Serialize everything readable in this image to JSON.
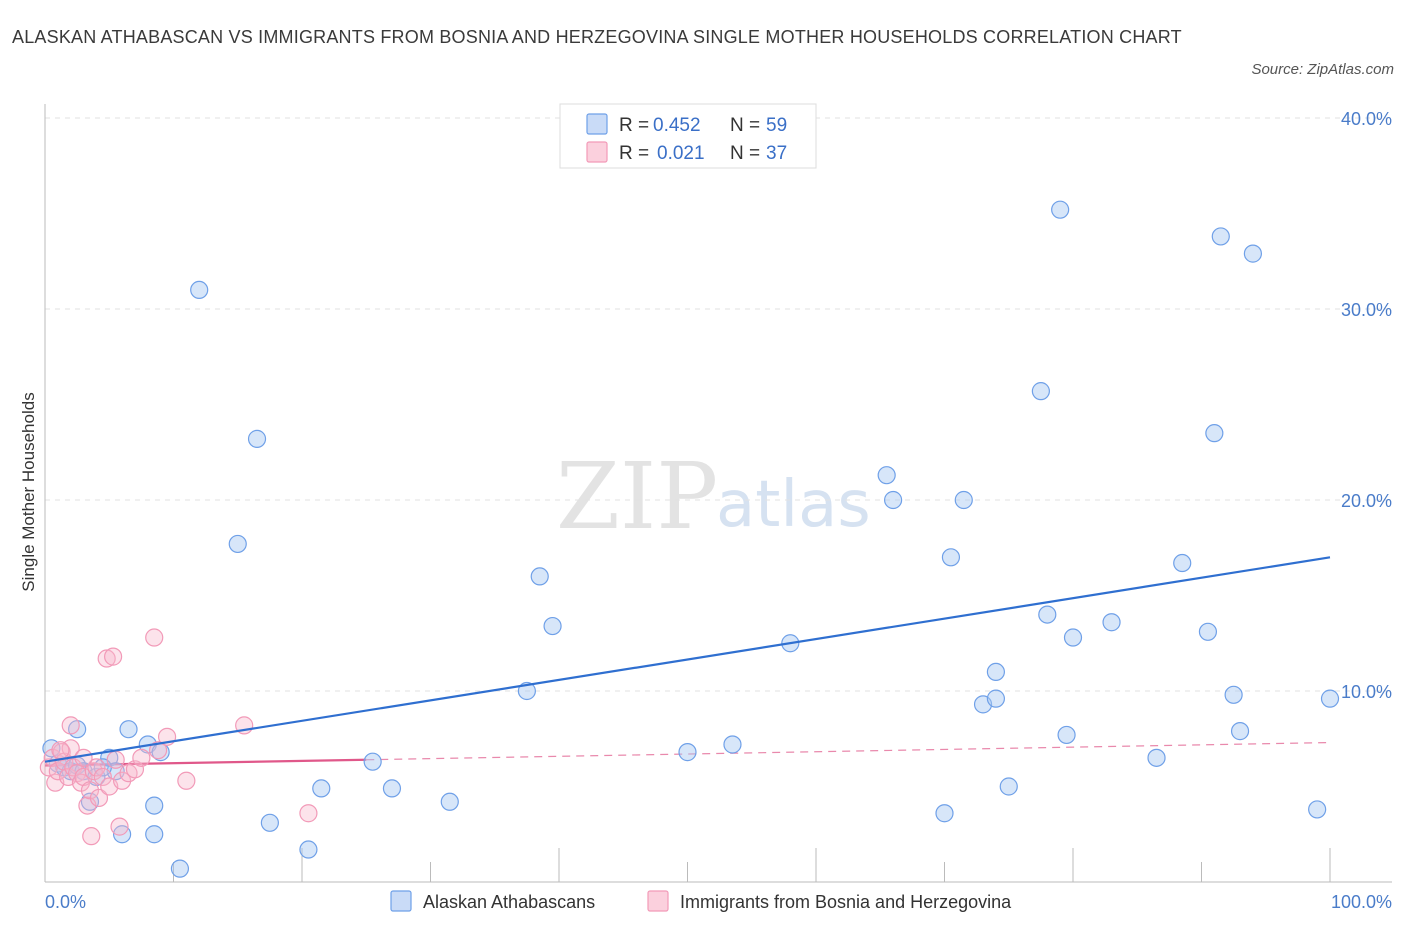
{
  "title": "ALASKAN ATHABASCAN VS IMMIGRANTS FROM BOSNIA AND HERZEGOVINA SINGLE MOTHER HOUSEHOLDS CORRELATION CHART",
  "source": "Source: ZipAtlas.com",
  "watermark": {
    "zip": "ZIP",
    "atlas": "atlas"
  },
  "legend": {
    "r_label": "R =",
    "n_label": "N =",
    "rows": [
      {
        "r": "0.452",
        "n": "59",
        "color": "#6fa0e8"
      },
      {
        "r": "0.021",
        "n": "37",
        "color": "#f29ab8"
      }
    ]
  },
  "bottom_legend": {
    "series1": "Alaskan Athabascans",
    "series2": "Immigrants from Bosnia and Herzegovina"
  },
  "chart_data": {
    "type": "scatter",
    "title": "ALASKAN ATHABASCAN VS IMMIGRANTS FROM BOSNIA AND HERZEGOVINA SINGLE MOTHER HOUSEHOLDS CORRELATION CHART",
    "xlabel": "",
    "ylabel": "Single Mother Households",
    "xlim": [
      0,
      100
    ],
    "ylim": [
      0,
      40
    ],
    "x_tick_labels": [
      "0.0%",
      "100.0%"
    ],
    "y_ticks": [
      10,
      20,
      30,
      40
    ],
    "y_tick_labels": [
      "10.0%",
      "20.0%",
      "30.0%",
      "40.0%"
    ],
    "grid": true,
    "legend_position": "top-center",
    "colors": {
      "series1": "#6fa0e8",
      "series1_line": "#2f6fd0",
      "series2": "#f29ab8",
      "series2_line": "#e0588a"
    },
    "series": [
      {
        "name": "Alaskan Athabascans",
        "R": 0.452,
        "N": 59,
        "trend": {
          "x": [
            0,
            100
          ],
          "y": [
            6.3,
            17.0
          ],
          "dashed_from": null
        },
        "points": [
          [
            0.5,
            7.0
          ],
          [
            1.0,
            6.2
          ],
          [
            1.5,
            6.0
          ],
          [
            2.0,
            5.8
          ],
          [
            2.5,
            6.1
          ],
          [
            3.0,
            5.8
          ],
          [
            4.0,
            5.5
          ],
          [
            3.5,
            4.2
          ],
          [
            2.5,
            8.0
          ],
          [
            5.0,
            6.5
          ],
          [
            5.5,
            5.8
          ],
          [
            6.5,
            8.0
          ],
          [
            8.0,
            7.2
          ],
          [
            9.0,
            6.8
          ],
          [
            6.0,
            2.5
          ],
          [
            8.5,
            4.0
          ],
          [
            8.5,
            2.5
          ],
          [
            10.5,
            0.7
          ],
          [
            12.0,
            31.0
          ],
          [
            15.0,
            17.7
          ],
          [
            16.5,
            23.2
          ],
          [
            17.5,
            3.1
          ],
          [
            20.5,
            1.7
          ],
          [
            21.5,
            4.9
          ],
          [
            25.5,
            6.3
          ],
          [
            27.0,
            4.9
          ],
          [
            31.5,
            4.2
          ],
          [
            37.5,
            10.0
          ],
          [
            38.5,
            16.0
          ],
          [
            39.5,
            13.4
          ],
          [
            50.0,
            6.8
          ],
          [
            53.5,
            7.2
          ],
          [
            58.0,
            12.5
          ],
          [
            65.5,
            21.3
          ],
          [
            66.0,
            20.0
          ],
          [
            70.0,
            3.6
          ],
          [
            70.5,
            17.0
          ],
          [
            71.5,
            20.0
          ],
          [
            73.0,
            9.3
          ],
          [
            74.0,
            11.0
          ],
          [
            74.0,
            9.6
          ],
          [
            75.0,
            5.0
          ],
          [
            77.5,
            25.7
          ],
          [
            78.0,
            14.0
          ],
          [
            79.0,
            35.2
          ],
          [
            79.5,
            7.7
          ],
          [
            80.0,
            12.8
          ],
          [
            83.0,
            13.6
          ],
          [
            86.5,
            6.5
          ],
          [
            88.5,
            16.7
          ],
          [
            90.5,
            13.1
          ],
          [
            91.0,
            23.5
          ],
          [
            91.5,
            33.8
          ],
          [
            92.5,
            9.8
          ],
          [
            93.0,
            7.9
          ],
          [
            94.0,
            32.9
          ],
          [
            99.0,
            3.8
          ],
          [
            100.0,
            9.6
          ],
          [
            4.5,
            6.0
          ]
        ]
      },
      {
        "name": "Immigrants from Bosnia and Herzegovina",
        "R": 0.021,
        "N": 37,
        "trend": {
          "x": [
            0,
            100
          ],
          "y": [
            6.1,
            7.3
          ],
          "dashed_from": 25
        },
        "points": [
          [
            0.3,
            6.0
          ],
          [
            0.6,
            6.5
          ],
          [
            0.8,
            5.2
          ],
          [
            1.0,
            5.8
          ],
          [
            1.3,
            6.8
          ],
          [
            1.5,
            6.3
          ],
          [
            1.8,
            5.5
          ],
          [
            2.0,
            7.0
          ],
          [
            2.2,
            6.0
          ],
          [
            2.5,
            5.7
          ],
          [
            2.8,
            5.2
          ],
          [
            3.0,
            5.5
          ],
          [
            3.3,
            4.0
          ],
          [
            3.5,
            4.8
          ],
          [
            3.6,
            2.4
          ],
          [
            3.8,
            5.8
          ],
          [
            4.0,
            6.0
          ],
          [
            4.2,
            4.4
          ],
          [
            4.5,
            5.5
          ],
          [
            4.8,
            11.7
          ],
          [
            5.0,
            5.0
          ],
          [
            5.3,
            11.8
          ],
          [
            5.5,
            6.4
          ],
          [
            5.8,
            2.9
          ],
          [
            6.0,
            5.3
          ],
          [
            6.5,
            5.7
          ],
          [
            7.0,
            5.9
          ],
          [
            7.5,
            6.5
          ],
          [
            8.5,
            12.8
          ],
          [
            8.8,
            6.9
          ],
          [
            9.5,
            7.6
          ],
          [
            2.0,
            8.2
          ],
          [
            3.0,
            6.5
          ],
          [
            11.0,
            5.3
          ],
          [
            15.5,
            8.2
          ],
          [
            20.5,
            3.6
          ],
          [
            1.2,
            6.9
          ]
        ]
      }
    ]
  }
}
